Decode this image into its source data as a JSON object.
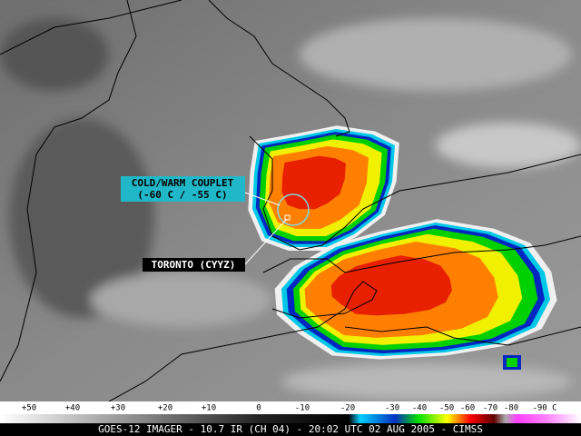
{
  "annotations": {
    "couplet": {
      "title": "COLD/WARM COUPLET",
      "subtitle": "(-60 C / -55 C)"
    },
    "station": "TORONTO (CYYZ)"
  },
  "colorbar": {
    "ticks": [
      "+50",
      "+40",
      "+30",
      "+20",
      "+10",
      "0",
      "-10",
      "-20",
      "-30",
      "-40",
      "-50",
      "-60",
      "-70",
      "-80",
      "-90 C"
    ]
  },
  "footer": "GOES-12 IMAGER - 10.7 IR (CH 04) - 20:02 UTC 02 AUG 2005 - CIMSS"
}
